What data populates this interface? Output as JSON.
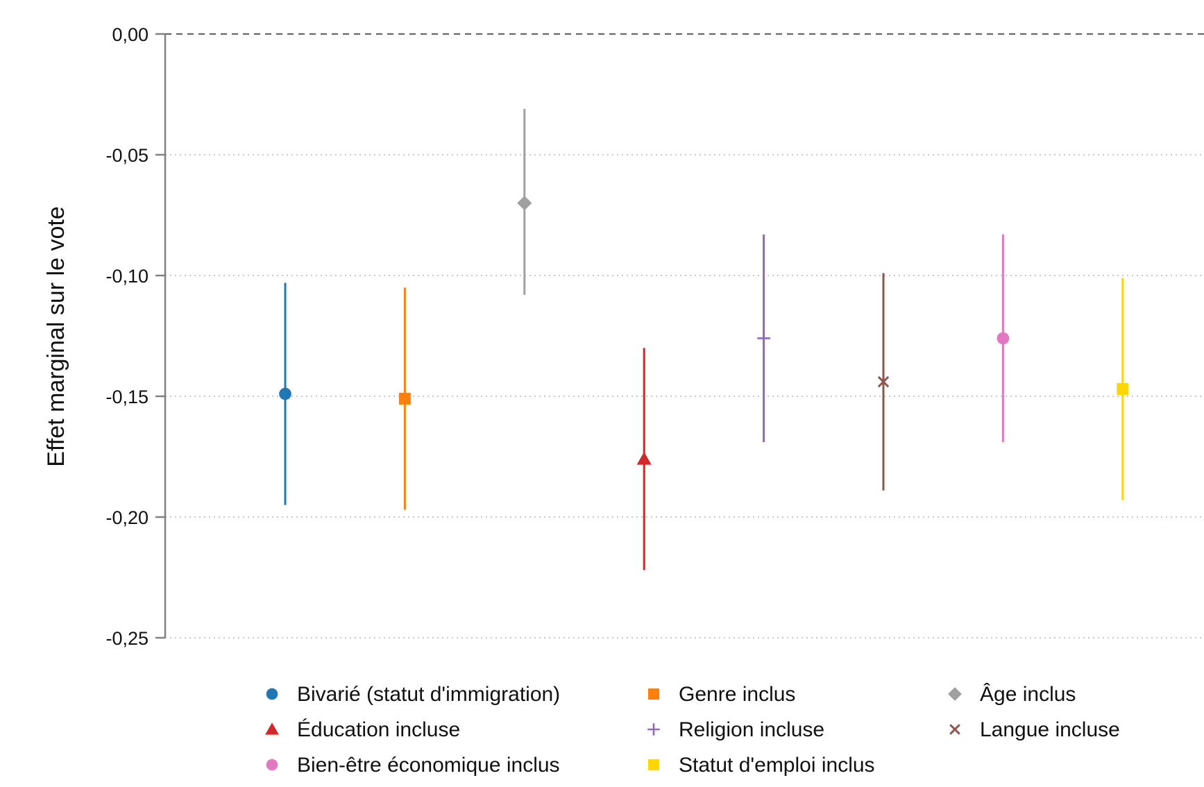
{
  "chart_data": {
    "type": "scatter",
    "ylabel": "Effet marginal sur le vote",
    "xlabel": "",
    "ylim": [
      -0.25,
      0.0
    ],
    "yticks": [
      0.0,
      -0.05,
      -0.1,
      -0.15,
      -0.2,
      -0.25
    ],
    "ytick_labels": [
      "0,00",
      "-0,05",
      "-0,10",
      "-0,15",
      "-0,20",
      "-0,25"
    ],
    "grid": "horizontal dotted",
    "reference_line": {
      "y": 0.0,
      "style": "dashed"
    },
    "legend_position": "bottom",
    "series": [
      {
        "name": "Bivarié (statut d'immigration)",
        "estimate": -0.149,
        "ci_low": -0.195,
        "ci_high": -0.103,
        "color": "#1f77b4",
        "marker": "circle"
      },
      {
        "name": "Genre inclus",
        "estimate": -0.151,
        "ci_low": -0.197,
        "ci_high": -0.105,
        "color": "#ff7f0e",
        "marker": "square"
      },
      {
        "name": "Âge inclus",
        "estimate": -0.07,
        "ci_low": -0.108,
        "ci_high": -0.031,
        "color": "#a0a0a0",
        "marker": "diamond"
      },
      {
        "name": "Éducation incluse",
        "estimate": -0.176,
        "ci_low": -0.222,
        "ci_high": -0.13,
        "color": "#d62728",
        "marker": "triangle"
      },
      {
        "name": "Religion incluse",
        "estimate": -0.126,
        "ci_low": -0.169,
        "ci_high": -0.083,
        "color": "#9467bd",
        "marker": "plus"
      },
      {
        "name": "Langue incluse",
        "estimate": -0.144,
        "ci_low": -0.189,
        "ci_high": -0.099,
        "color": "#8c564b",
        "marker": "x"
      },
      {
        "name": "Bien-être économique inclus",
        "estimate": -0.126,
        "ci_low": -0.169,
        "ci_high": -0.083,
        "color": "#e377c2",
        "marker": "circle"
      },
      {
        "name": "Statut d'emploi inclus",
        "estimate": -0.147,
        "ci_low": -0.193,
        "ci_high": -0.101,
        "color": "#ffd700",
        "marker": "square"
      }
    ]
  }
}
